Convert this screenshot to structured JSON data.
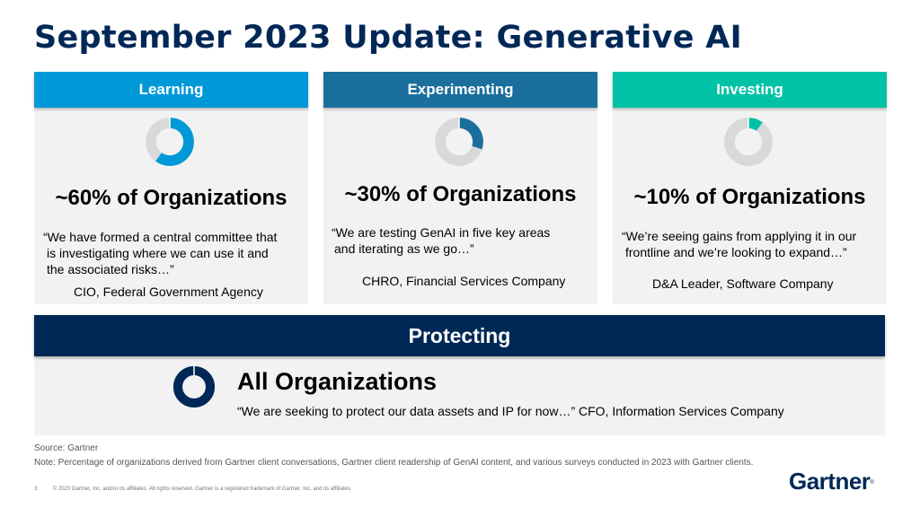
{
  "title": "September 2023 Update: Generative AI",
  "colors": {
    "navy": "#002856",
    "learning": "#0099d8",
    "experimenting": "#1a6f9c",
    "investing": "#00c2a6",
    "ring_bg": "#d9d9d9"
  },
  "panels": [
    {
      "header": "Learning",
      "share": 0.6,
      "headline": "~60% of Organizations",
      "quote": [
        "“We have formed a central committee that",
        "is investigating where we can use it and",
        "the associated risks…”"
      ],
      "attribution": "CIO, Federal Government Agency"
    },
    {
      "header": "Experimenting",
      "share": 0.3,
      "headline": "~30% of Organizations",
      "quote": [
        "“We are testing GenAI in five key areas",
        "and iterating as we go…”"
      ],
      "attribution": "CHRO, Financial Services Company"
    },
    {
      "header": "Investing",
      "share": 0.1,
      "headline": "~10% of Organizations",
      "quote": [
        "“We’re seeing gains from applying it in our",
        "frontline and we’re looking to expand…”"
      ],
      "attribution": "D&A Leader, Software Company"
    }
  ],
  "protecting": {
    "header": "Protecting",
    "share": 1.0,
    "headline": "All Organizations",
    "quote": "“We are seeking to protect our data assets and IP for now…”  CFO, Information Services Company"
  },
  "source": "Source: Gartner",
  "note": "Note: Percentage of organizations derived from Gartner client conversations, Gartner client readership of GenAI content, and various surveys conducted in 2023 with Gartner clients.",
  "page_number": "3",
  "copyright": "© 2023 Gartner, Inc. and/or its affiliates. All rights reserved. Gartner is a registered trademark of Gartner, Inc. and its affiliates.",
  "logo": "Gartner",
  "logo_mark": "®"
}
